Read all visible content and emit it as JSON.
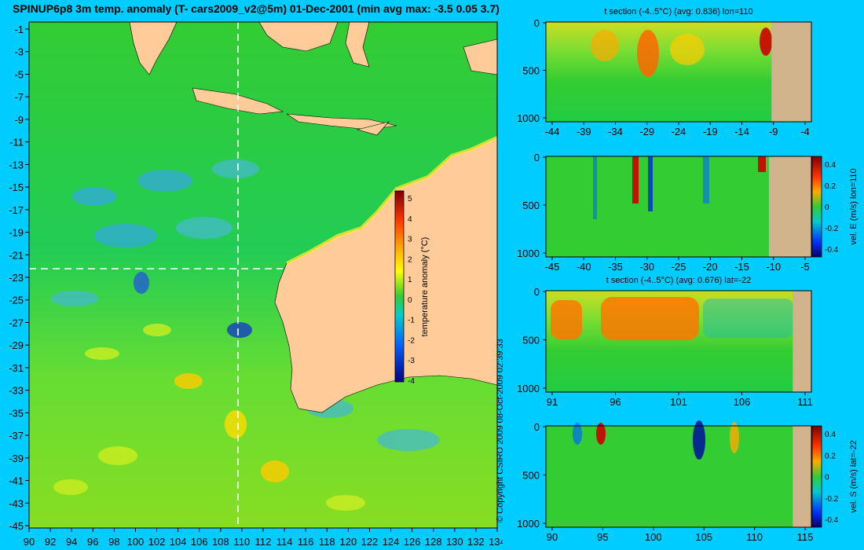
{
  "title": "SPINUP6p8 3m temp. anomaly (T- cars2009_v2@5m) 01-Dec-2001 (min avg max: -3.5 0.05 3.7)",
  "map": {
    "lon_ticks": [
      "90",
      "92",
      "94",
      "96",
      "98",
      "100",
      "102",
      "104",
      "106",
      "108",
      "110",
      "112",
      "114",
      "116",
      "118",
      "120",
      "122",
      "124",
      "126",
      "128",
      "130",
      "132",
      "134"
    ],
    "lat_ticks": [
      "-1",
      "-3",
      "-5",
      "-7",
      "-9",
      "-11",
      "-13",
      "-15",
      "-17",
      "-19",
      "-21",
      "-23",
      "-25",
      "-27",
      "-29",
      "-31",
      "-33",
      "-35",
      "-37",
      "-39",
      "-41",
      "-43",
      "-45"
    ],
    "colorbar_label": "temperature anomaly (°C)",
    "colorbar_ticks": [
      "5",
      "4",
      "3",
      "2",
      "1",
      "0",
      "-1",
      "-2",
      "-3",
      "-4"
    ],
    "colors": {
      "ocean_main": "#22cc33",
      "land": "#ffcc99",
      "background": "#00ccff",
      "section_line": "#ffffff"
    }
  },
  "copyright": "© Copyright CSIRO 2009   08-Oct-2009 02:39:33",
  "panels": [
    {
      "title": "t section (-4..5°C) (avg: 0.836) lon=110",
      "x_ticks": [
        "-44",
        "-39",
        "-34",
        "-29",
        "-24",
        "-19",
        "-14",
        "-9",
        "-4"
      ],
      "y_ticks": [
        "0",
        "500",
        "1000"
      ],
      "colorbar_label": "",
      "colorbar_ticks": []
    },
    {
      "title": "",
      "x_ticks": [
        "-45",
        "-40",
        "-35",
        "-30",
        "-25",
        "-20",
        "-15",
        "-10",
        "-5"
      ],
      "y_ticks": [
        "0",
        "500",
        "1000"
      ],
      "colorbar_label": "vel. E (m/s) lon=110",
      "colorbar_ticks": [
        "0.4",
        "0.2",
        "0",
        "-0.2",
        "-0.4"
      ]
    },
    {
      "title": "t section (-4..5°C) (avg: 0.676) lat=-22",
      "x_ticks": [
        "91",
        "96",
        "101",
        "106",
        "111"
      ],
      "y_ticks": [
        "0",
        "500",
        "1000"
      ],
      "colorbar_label": "",
      "colorbar_ticks": []
    },
    {
      "title": "",
      "x_ticks": [
        "90",
        "95",
        "100",
        "105",
        "110",
        "115"
      ],
      "y_ticks": [
        "0",
        "500",
        "1000"
      ],
      "colorbar_label": "vel. S (m/s) lat=-22",
      "colorbar_ticks": [
        "0.4",
        "0.2",
        "0",
        "-0.2",
        "-0.4"
      ]
    }
  ]
}
